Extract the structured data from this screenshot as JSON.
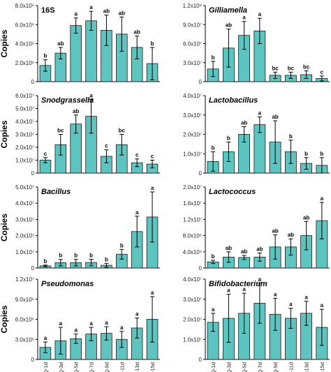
{
  "chart_data": [
    {
      "type": "bar",
      "panel": "16S",
      "title_italic": false,
      "ylabel": "Copies",
      "categories": [
        "UQ-1d",
        "UQ-3d",
        "UQ-5d",
        "UQ-7d",
        "UQ-9d",
        "UQ-11d",
        "UQ-13d",
        "UQ-15d"
      ],
      "values": [
        1700000,
        3000000,
        5900000,
        6400000,
        5400000,
        5000000,
        3600000,
        1900000
      ],
      "errors": [
        600000,
        600000,
        800000,
        1000000,
        1600000,
        1800000,
        1200000,
        1700000
      ],
      "significance": [
        "b",
        "ab",
        "a",
        "a",
        "ab",
        "ab",
        "ab",
        "b"
      ],
      "ylim": [
        0,
        8000000
      ],
      "ytick_labels": [
        "0",
        "2.0x10⁶",
        "4.0x10⁶",
        "6.0x10⁶",
        "8.0x10⁶"
      ]
    },
    {
      "type": "bar",
      "panel": "Gilliamella",
      "title_italic": true,
      "ylabel": "",
      "categories": [
        "UQ-1d",
        "UQ-3d",
        "UQ-5d",
        "UQ-7d",
        "UQ-9d",
        "UQ-11d",
        "UQ-13d",
        "UQ-15d"
      ],
      "values": [
        20000000,
        53000000,
        73000000,
        80000000,
        10000000,
        10000000,
        11000000,
        5000000
      ],
      "errors": [
        12000000,
        30000000,
        22000000,
        20000000,
        5000000,
        5000000,
        6000000,
        4000000
      ],
      "significance": [
        "b",
        "ab",
        "a",
        "a",
        "bc",
        "bc",
        "bc",
        "c"
      ],
      "ylim": [
        0,
        120000000
      ],
      "ytick_labels": [
        "0",
        "3.0x10⁷",
        "6.0x10⁷",
        "9.0x10⁷",
        "1.2x10⁸"
      ]
    },
    {
      "type": "bar",
      "panel": "Snodgrassella",
      "title_italic": true,
      "ylabel": "Copies",
      "categories": [
        "UQ-1d",
        "UQ-3d",
        "UQ-5d",
        "UQ-7d",
        "UQ-9d",
        "UQ-11d",
        "UQ-13d",
        "UQ-15d"
      ],
      "values": [
        10000000,
        22000000,
        38000000,
        44000000,
        13000000,
        22000000,
        8000000,
        7000000
      ],
      "errors": [
        2000000,
        8000000,
        7000000,
        13000000,
        5000000,
        8000000,
        3000000,
        3000000
      ],
      "significance": [
        "c",
        "bc",
        "ab",
        "a",
        "c",
        "bc",
        "c",
        "c"
      ],
      "ylim": [
        0,
        60000000
      ],
      "ytick_labels": [
        "0",
        "1.0x10⁷",
        "2.0x10⁷",
        "3.0x10⁷",
        "4.0x10⁷",
        "5.0x10⁷",
        "6.0x10⁷"
      ]
    },
    {
      "type": "bar",
      "panel": "Lactobacillus",
      "title_italic": true,
      "ylabel": "",
      "categories": [
        "UQ-1d",
        "UQ-3d",
        "UQ-5d",
        "UQ-7d",
        "UQ-9d",
        "UQ-11d",
        "UQ-13d",
        "UQ-15d"
      ],
      "values": [
        6000000,
        11000000,
        20000000,
        25000000,
        16000000,
        11000000,
        5000000,
        4000000
      ],
      "errors": [
        5000000,
        5000000,
        4000000,
        4000000,
        11000000,
        6000000,
        3000000,
        4000000
      ],
      "significance": [
        "b",
        "b",
        "ab",
        "a",
        "ab",
        "b",
        "b",
        "b"
      ],
      "ylim": [
        0,
        40000000
      ],
      "ytick_labels": [
        "0",
        "1.0x10⁷",
        "2.0x10⁷",
        "3.0x10⁷",
        "4.0x10⁷"
      ]
    },
    {
      "type": "bar",
      "panel": "Bacillus",
      "title_italic": true,
      "ylabel": "Copies",
      "categories": [
        "UQ-1d",
        "UQ-3d",
        "UQ-5d",
        "UQ-7d",
        "UQ-9d",
        "UQ-11d",
        "UQ-13d",
        "UQ-15d"
      ],
      "values": [
        1300000,
        3300000,
        3300000,
        3400000,
        1700000,
        8500000,
        22500000,
        31500000
      ],
      "errors": [
        500000,
        2000000,
        2000000,
        2000000,
        1200000,
        3000000,
        9500000,
        15500000
      ],
      "significance": [
        "b",
        "b",
        "b",
        "b",
        "b",
        "b",
        "a",
        "a"
      ],
      "ylim": [
        0,
        50000000
      ],
      "ytick_labels": [
        "0",
        "1.0x10⁷",
        "2.0x10⁷",
        "3.0x10⁷",
        "4.0x10⁷",
        "5.0x10⁷"
      ]
    },
    {
      "type": "bar",
      "panel": "Lactococcus",
      "title_italic": true,
      "ylabel": "",
      "categories": [
        "UQ-1d",
        "UQ-3d",
        "UQ-5d",
        "UQ-7d",
        "UQ-9d",
        "UQ-11d",
        "UQ-13d",
        "UQ-15d"
      ],
      "values": [
        1500000,
        2700000,
        2600000,
        2700000,
        5200000,
        5200000,
        8000000,
        11700000
      ],
      "errors": [
        400000,
        1300000,
        500000,
        1000000,
        3000000,
        2000000,
        3500000,
        4500000
      ],
      "significance": [
        "b",
        "ab",
        "ab",
        "ab",
        "ab",
        "ab",
        "ab",
        "a"
      ],
      "ylim": [
        0,
        20000000
      ],
      "ytick_labels": [
        "0",
        "4.0x10⁶",
        "8.0x10⁶",
        "1.2x10⁷",
        "1.6x10⁷",
        "2.0x10⁷"
      ]
    },
    {
      "type": "bar",
      "panel": "Pseudomonas",
      "title_italic": true,
      "ylabel": "Copies",
      "categories": [
        "UQ-1d",
        "UQ-3d",
        "UQ-5d",
        "UQ-7d",
        "UQ-9d",
        "UQ-11d",
        "UQ-13d",
        "UQ-15d"
      ],
      "values": [
        1800000,
        2800000,
        3100000,
        3800000,
        3900000,
        3000000,
        4700000,
        6000000
      ],
      "errors": [
        800000,
        2000000,
        700000,
        1000000,
        1000000,
        1200000,
        1500000,
        3400000
      ],
      "significance": [
        "a",
        "a",
        "a",
        "a",
        "a",
        "a",
        "a",
        "a"
      ],
      "ylim": [
        0,
        12000000
      ],
      "ytick_labels": [
        "0",
        "3.0x10⁶",
        "6.0x10⁶",
        "9.0x10⁶",
        "1.2x10⁷"
      ]
    },
    {
      "type": "bar",
      "panel": "Bifidobacterium",
      "title_italic": true,
      "ylabel": "",
      "categories": [
        "UQ-1d",
        "UQ-3d",
        "UQ-5d",
        "UQ-7d",
        "UQ-9d",
        "UQ-11d",
        "UQ-13d",
        "UQ-15d"
      ],
      "values": [
        18500000,
        20500000,
        23000000,
        28000000,
        22500000,
        20500000,
        23000000,
        16000000
      ],
      "errors": [
        4500000,
        12000000,
        10000000,
        10000000,
        8000000,
        5000000,
        6000000,
        9000000
      ],
      "significance": [
        "a",
        "a",
        "a",
        "a",
        "a",
        "a",
        "a",
        "a"
      ],
      "ylim": [
        0,
        40000000
      ],
      "ytick_labels": [
        "0",
        "1.0x10⁷",
        "2.0x10⁷",
        "3.0x10⁷",
        "4.0x10⁷"
      ]
    }
  ],
  "colors": {
    "bar_fill": "#5ec4c0",
    "bar_stroke": "#1a1a1a"
  }
}
